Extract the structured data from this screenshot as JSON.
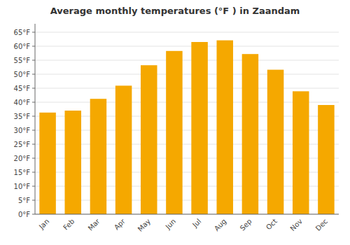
{
  "chart_data": {
    "type": "bar",
    "title": "Average monthly temperatures (°F ) in Zaandam",
    "categories": [
      "Jan",
      "Feb",
      "Mar",
      "Apr",
      "May",
      "Jun",
      "Jul",
      "Aug",
      "Sep",
      "Oct",
      "Nov",
      "Dec"
    ],
    "values": [
      36.3,
      37.0,
      41.2,
      45.9,
      53.2,
      58.3,
      61.5,
      62.1,
      57.2,
      51.6,
      43.9,
      39.0
    ],
    "color": "#F5A800",
    "ylim": [
      0,
      68
    ],
    "yticks": [
      {
        "value": 0,
        "label": "0°F"
      },
      {
        "value": 5,
        "label": "5°F"
      },
      {
        "value": 10,
        "label": "10°F"
      },
      {
        "value": 15,
        "label": "15°F"
      },
      {
        "value": 20,
        "label": "20°F"
      },
      {
        "value": 25,
        "label": "25°F"
      },
      {
        "value": 30,
        "label": "30°F"
      },
      {
        "value": 35,
        "label": "35°F"
      },
      {
        "value": 40,
        "label": "40°F"
      },
      {
        "value": 45,
        "label": "45°F"
      },
      {
        "value": 50,
        "label": "50°F"
      },
      {
        "value": 55,
        "label": "55°F"
      },
      {
        "value": 60,
        "label": "60°F"
      },
      {
        "value": 65,
        "label": "65°F"
      }
    ],
    "grid": true
  }
}
